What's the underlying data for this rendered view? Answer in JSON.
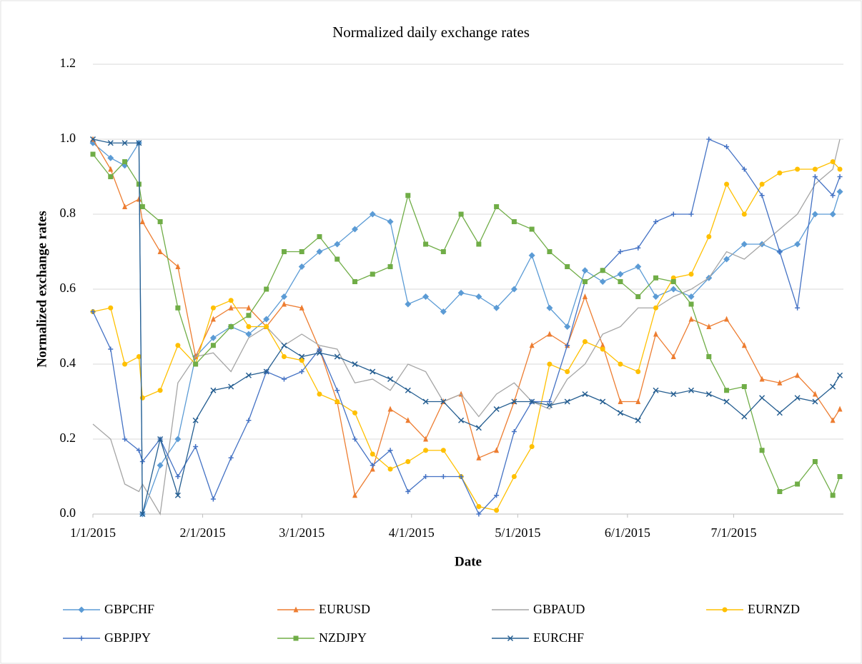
{
  "chart_data": {
    "type": "line",
    "title": "Normalized daily exchange rates",
    "x_label": "Date",
    "y_label": "Normalized exchange rates",
    "x": [
      "1/1/2015",
      "1/6/2015",
      "1/10/2015",
      "1/14/2015",
      "1/15/2015",
      "1/20/2015",
      "1/25/2015",
      "1/30/2015",
      "2/4/2015",
      "2/9/2015",
      "2/14/2015",
      "2/19/2015",
      "2/24/2015",
      "3/1/2015",
      "3/6/2015",
      "3/11/2015",
      "3/16/2015",
      "3/21/2015",
      "3/26/2015",
      "3/31/2015",
      "4/5/2015",
      "4/10/2015",
      "4/15/2015",
      "4/20/2015",
      "4/25/2015",
      "4/30/2015",
      "5/5/2015",
      "5/10/2015",
      "5/15/2015",
      "5/20/2015",
      "5/25/2015",
      "5/30/2015",
      "6/4/2015",
      "6/9/2015",
      "6/14/2015",
      "6/19/2015",
      "6/24/2015",
      "6/29/2015",
      "7/4/2015",
      "7/9/2015",
      "7/14/2015",
      "7/19/2015",
      "7/24/2015",
      "7/29/2015",
      "7/31/2015"
    ],
    "xlim": [
      "1/1/2015",
      "8/1/2015"
    ],
    "xticks": [
      "1/1/2015",
      "2/1/2015",
      "3/1/2015",
      "4/1/2015",
      "5/1/2015",
      "6/1/2015",
      "7/1/2015"
    ],
    "ylim": [
      0,
      1.2
    ],
    "yticks": [
      {
        "value": 0,
        "label": "0.0"
      },
      {
        "value": 0.2,
        "label": "0.2"
      },
      {
        "value": 0.4,
        "label": "0.4"
      },
      {
        "value": 0.6,
        "label": "0.6"
      },
      {
        "value": 0.8,
        "label": "0.8"
      },
      {
        "value": 1,
        "label": "1.0"
      },
      {
        "value": 1.2,
        "label": "1.2"
      }
    ],
    "grid": true,
    "legend": "bottom",
    "series": [
      {
        "name": "GBPCHF",
        "color": "#5b9bd5",
        "marker": "diamond",
        "values": [
          0.99,
          0.95,
          0.93,
          0.99,
          0.0,
          0.13,
          0.2,
          0.42,
          0.47,
          0.5,
          0.48,
          0.52,
          0.58,
          0.66,
          0.7,
          0.72,
          0.76,
          0.8,
          0.78,
          0.56,
          0.58,
          0.54,
          0.59,
          0.58,
          0.55,
          0.6,
          0.69,
          0.55,
          0.5,
          0.65,
          0.62,
          0.64,
          0.66,
          0.58,
          0.6,
          0.58,
          0.63,
          0.68,
          0.72,
          0.72,
          0.7,
          0.72,
          0.8,
          0.8,
          0.86
        ]
      },
      {
        "name": "EURUSD",
        "color": "#ed7d31",
        "marker": "triangle",
        "values": [
          1.0,
          0.92,
          0.82,
          0.84,
          0.78,
          0.7,
          0.66,
          0.42,
          0.52,
          0.55,
          0.55,
          0.5,
          0.56,
          0.55,
          0.44,
          0.3,
          0.05,
          0.12,
          0.28,
          0.25,
          0.2,
          0.3,
          0.32,
          0.15,
          0.17,
          0.3,
          0.45,
          0.48,
          0.45,
          0.58,
          0.45,
          0.3,
          0.3,
          0.48,
          0.42,
          0.52,
          0.5,
          0.52,
          0.45,
          0.36,
          0.35,
          0.37,
          0.32,
          0.25,
          0.28
        ]
      },
      {
        "name": "GBPAUD",
        "color": "#a5a5a5",
        "marker": "none",
        "values": [
          0.24,
          0.2,
          0.08,
          0.06,
          0.08,
          0.0,
          0.35,
          0.42,
          0.43,
          0.38,
          0.47,
          0.5,
          0.45,
          0.48,
          0.45,
          0.44,
          0.35,
          0.36,
          0.33,
          0.4,
          0.38,
          0.3,
          0.32,
          0.26,
          0.32,
          0.35,
          0.3,
          0.28,
          0.36,
          0.4,
          0.48,
          0.5,
          0.55,
          0.55,
          0.58,
          0.6,
          0.63,
          0.7,
          0.68,
          0.72,
          0.76,
          0.8,
          0.88,
          0.92,
          1.0
        ]
      },
      {
        "name": "EURNZD",
        "color": "#ffc000",
        "marker": "circle",
        "values": [
          0.54,
          0.55,
          0.4,
          0.42,
          0.31,
          0.33,
          0.45,
          0.4,
          0.55,
          0.57,
          0.5,
          0.5,
          0.42,
          0.41,
          0.32,
          0.3,
          0.27,
          0.16,
          0.12,
          0.14,
          0.17,
          0.17,
          0.1,
          0.02,
          0.01,
          0.1,
          0.18,
          0.4,
          0.38,
          0.46,
          0.44,
          0.4,
          0.38,
          0.55,
          0.63,
          0.64,
          0.74,
          0.88,
          0.8,
          0.88,
          0.91,
          0.92,
          0.92,
          0.94,
          0.92
        ]
      },
      {
        "name": "GBPJPY",
        "color": "#4472c4",
        "marker": "plus",
        "values": [
          0.54,
          0.44,
          0.2,
          0.17,
          0.14,
          0.2,
          0.1,
          0.18,
          0.04,
          0.15,
          0.25,
          0.38,
          0.36,
          0.38,
          0.44,
          0.33,
          0.2,
          0.13,
          0.17,
          0.06,
          0.1,
          0.1,
          0.1,
          0.0,
          0.05,
          0.22,
          0.3,
          0.3,
          0.45,
          0.62,
          0.65,
          0.7,
          0.71,
          0.78,
          0.8,
          0.8,
          1.0,
          0.98,
          0.92,
          0.85,
          0.7,
          0.55,
          0.9,
          0.85,
          0.9
        ]
      },
      {
        "name": "NZDJPY",
        "color": "#70ad47",
        "marker": "square",
        "values": [
          0.96,
          0.9,
          0.94,
          0.88,
          0.82,
          0.78,
          0.55,
          0.4,
          0.45,
          0.5,
          0.53,
          0.6,
          0.7,
          0.7,
          0.74,
          0.68,
          0.62,
          0.64,
          0.66,
          0.85,
          0.72,
          0.7,
          0.8,
          0.72,
          0.82,
          0.78,
          0.76,
          0.7,
          0.66,
          0.62,
          0.65,
          0.62,
          0.58,
          0.63,
          0.62,
          0.56,
          0.42,
          0.33,
          0.34,
          0.17,
          0.06,
          0.08,
          0.14,
          0.05,
          0.1
        ]
      },
      {
        "name": "EURCHF",
        "color": "#255e91",
        "marker": "x",
        "values": [
          1.0,
          0.99,
          0.99,
          0.99,
          0.0,
          0.2,
          0.05,
          0.25,
          0.33,
          0.34,
          0.37,
          0.38,
          0.45,
          0.42,
          0.43,
          0.42,
          0.4,
          0.38,
          0.36,
          0.33,
          0.3,
          0.3,
          0.25,
          0.23,
          0.28,
          0.3,
          0.3,
          0.29,
          0.3,
          0.32,
          0.3,
          0.27,
          0.25,
          0.33,
          0.32,
          0.33,
          0.32,
          0.3,
          0.26,
          0.31,
          0.27,
          0.31,
          0.3,
          0.34,
          0.37
        ]
      }
    ]
  }
}
